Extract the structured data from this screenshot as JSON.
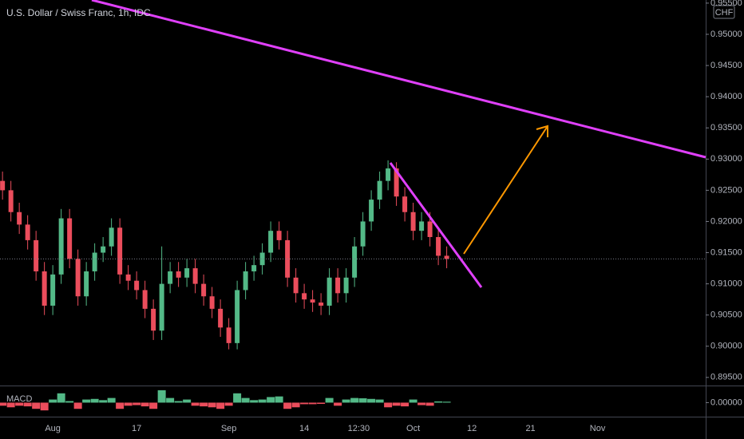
{
  "chart_data": [
    {
      "type": "candlestick",
      "title": "U.S. Dollar / Swiss Franc, 1h, IDC",
      "currency": "CHF",
      "up_color": "#53b987",
      "down_color": "#eb4d5c",
      "x": [
        -6,
        -5,
        -4,
        -3,
        -2,
        -1,
        0,
        1,
        2,
        3,
        4,
        5,
        6,
        7,
        8,
        9,
        10,
        11,
        12,
        13,
        14,
        15,
        16,
        17,
        18,
        19,
        20,
        21,
        22,
        23,
        24,
        25,
        26,
        27,
        28,
        29,
        30,
        31,
        32,
        33,
        34,
        35,
        36,
        37,
        38,
        39,
        40,
        41,
        42,
        43,
        44,
        45,
        46,
        47
      ],
      "open": [
        0.9265,
        0.925,
        0.9215,
        0.9195,
        0.917,
        0.912,
        0.9065,
        0.9115,
        0.9205,
        0.914,
        0.908,
        0.912,
        0.915,
        0.916,
        0.919,
        0.9115,
        0.9105,
        0.909,
        0.906,
        0.9025,
        0.91,
        0.912,
        0.911,
        0.9125,
        0.91,
        0.908,
        0.906,
        0.903,
        0.9005,
        0.909,
        0.912,
        0.913,
        0.915,
        0.9185,
        0.917,
        0.911,
        0.9085,
        0.9075,
        0.907,
        0.9065,
        0.911,
        0.9085,
        0.911,
        0.916,
        0.92,
        0.9235,
        0.9265,
        0.9285,
        0.924,
        0.9215,
        0.9185,
        0.92,
        0.9175,
        0.9145
      ],
      "high": [
        0.928,
        0.9265,
        0.923,
        0.921,
        0.9185,
        0.9135,
        0.913,
        0.922,
        0.922,
        0.9155,
        0.9135,
        0.9165,
        0.9175,
        0.9205,
        0.9205,
        0.913,
        0.912,
        0.9105,
        0.9075,
        0.916,
        0.9135,
        0.9135,
        0.914,
        0.914,
        0.9115,
        0.9095,
        0.9075,
        0.9045,
        0.9105,
        0.9135,
        0.9145,
        0.9165,
        0.92,
        0.92,
        0.9185,
        0.9125,
        0.91,
        0.909,
        0.9085,
        0.9125,
        0.9125,
        0.9125,
        0.9175,
        0.9215,
        0.925,
        0.928,
        0.9298,
        0.9295,
        0.9255,
        0.923,
        0.9215,
        0.9215,
        0.919,
        0.916
      ],
      "low": [
        0.9235,
        0.92,
        0.918,
        0.9155,
        0.9105,
        0.905,
        0.905,
        0.91,
        0.9125,
        0.9065,
        0.9065,
        0.9105,
        0.9135,
        0.9145,
        0.91,
        0.909,
        0.9075,
        0.9045,
        0.901,
        0.901,
        0.9085,
        0.9095,
        0.9095,
        0.9085,
        0.9065,
        0.9045,
        0.9015,
        0.8995,
        0.8995,
        0.9075,
        0.9105,
        0.9115,
        0.9135,
        0.9155,
        0.9095,
        0.907,
        0.906,
        0.9055,
        0.905,
        0.905,
        0.907,
        0.907,
        0.9095,
        0.9145,
        0.9185,
        0.922,
        0.925,
        0.9225,
        0.92,
        0.917,
        0.917,
        0.916,
        0.913,
        0.9125
      ],
      "close": [
        0.925,
        0.9215,
        0.9195,
        0.917,
        0.912,
        0.9065,
        0.9115,
        0.9205,
        0.914,
        0.908,
        0.912,
        0.915,
        0.916,
        0.919,
        0.9115,
        0.9105,
        0.909,
        0.906,
        0.9025,
        0.91,
        0.912,
        0.911,
        0.9125,
        0.91,
        0.908,
        0.906,
        0.903,
        0.9005,
        0.909,
        0.912,
        0.913,
        0.915,
        0.9185,
        0.917,
        0.911,
        0.9085,
        0.9075,
        0.907,
        0.9065,
        0.911,
        0.9085,
        0.911,
        0.916,
        0.92,
        0.9235,
        0.9265,
        0.9285,
        0.924,
        0.9215,
        0.9185,
        0.92,
        0.9175,
        0.9145,
        0.914
      ],
      "xlim": [
        -6.3,
        77.9
      ],
      "xticks": [
        {
          "value": 0,
          "label": "Aug"
        },
        {
          "value": 10,
          "label": "17"
        },
        {
          "value": 21,
          "label": "Sep"
        },
        {
          "value": 30,
          "label": "14"
        },
        {
          "value": 36.5,
          "label": "12:30"
        },
        {
          "value": 43,
          "label": "Oct"
        },
        {
          "value": 50,
          "label": "12"
        },
        {
          "value": 57,
          "label": "21"
        },
        {
          "value": 65,
          "label": "Nov"
        }
      ],
      "ylim": [
        0.8937,
        0.9555
      ],
      "yticks": [
        {
          "value": 0.895,
          "label": "0.89500"
        },
        {
          "value": 0.9,
          "label": "0.90000"
        },
        {
          "value": 0.905,
          "label": "0.90500"
        },
        {
          "value": 0.91,
          "label": "0.91000"
        },
        {
          "value": 0.915,
          "label": "0.91500"
        },
        {
          "value": 0.92,
          "label": "0.92000"
        },
        {
          "value": 0.925,
          "label": "0.92500"
        },
        {
          "value": 0.93,
          "label": "0.93000"
        },
        {
          "value": 0.935,
          "label": "0.93500"
        },
        {
          "value": 0.94,
          "label": "0.94000"
        },
        {
          "value": 0.945,
          "label": "0.94500"
        },
        {
          "value": 0.95,
          "label": "0.95000"
        },
        {
          "value": 0.955,
          "label": "0.95500"
        }
      ]
    },
    {
      "type": "bar",
      "title": "MACD",
      "up_color": "#53b987",
      "down_color": "#eb4d5c",
      "x": [
        -6,
        -5,
        -4,
        -3,
        -2,
        -1,
        0,
        1,
        2,
        3,
        4,
        5,
        6,
        7,
        8,
        9,
        10,
        11,
        12,
        13,
        14,
        15,
        16,
        17,
        18,
        19,
        20,
        21,
        22,
        23,
        24,
        25,
        26,
        27,
        28,
        29,
        30,
        31,
        32,
        33,
        34,
        35,
        36,
        37,
        38,
        39,
        40,
        41,
        42,
        43,
        44,
        45,
        46,
        47
      ],
      "values": [
        -0.0001,
        -0.00015,
        -0.0001,
        -0.00012,
        -0.0002,
        -0.00025,
        0.0001,
        0.0003,
        5e-05,
        -0.0002,
        0.0001,
        0.00012,
        8e-05,
        0.00015,
        -0.0002,
        -0.0001,
        -8e-05,
        -0.00012,
        -0.0002,
        0.0004,
        0.00015,
        5e-05,
        0.0001,
        -0.0001,
        -0.00012,
        -0.00015,
        -0.0002,
        -0.0001,
        0.0003,
        0.00015,
        8e-05,
        0.0001,
        0.00018,
        0.0002,
        -0.0002,
        -0.00015,
        -5e-05,
        -5e-05,
        -4e-05,
        0.00015,
        -0.0001,
        0.0001,
        0.00015,
        0.00014,
        0.00012,
        0.0001,
        -0.00015,
        -0.0001,
        -0.00012,
        0.0001,
        -8e-05,
        -0.0001,
        4e-05,
        3e-05
      ],
      "xlim": [
        -6.3,
        77.9
      ],
      "ylim": [
        -0.0004,
        0.0005
      ],
      "yticks": [
        {
          "value": 0,
          "label": "0.00000"
        }
      ]
    }
  ]
}
